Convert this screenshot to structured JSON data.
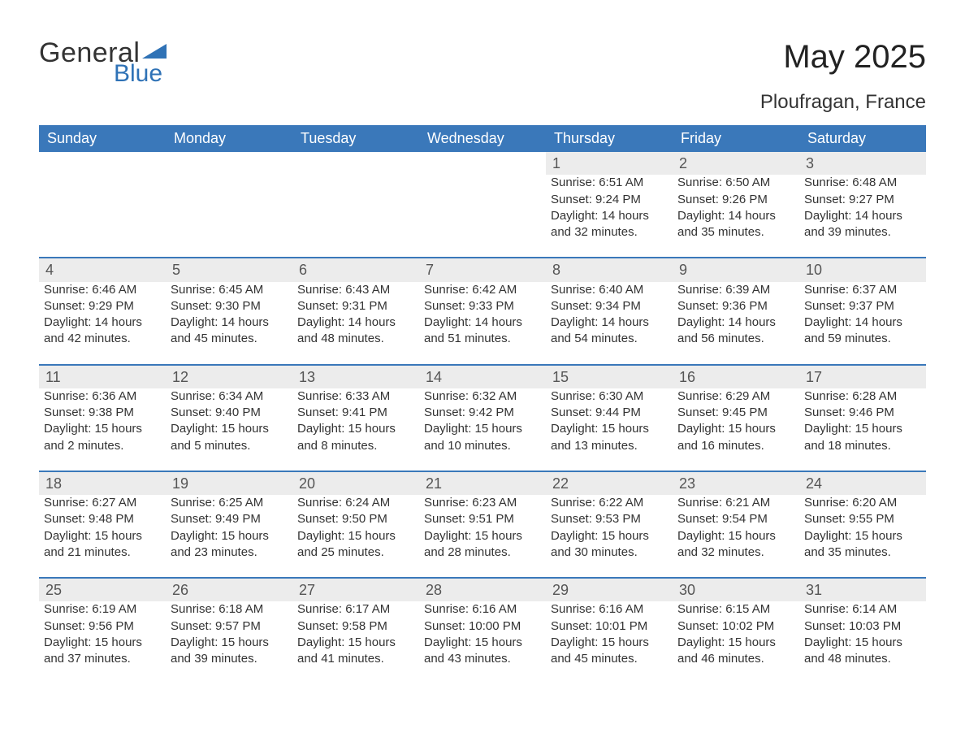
{
  "logo": {
    "text1": "General",
    "text2": "Blue",
    "triangle_color": "#2f72b6"
  },
  "title": "May 2025",
  "subtitle": "Ploufragan, France",
  "colors": {
    "header_bg": "#3a78ba",
    "header_text": "#ffffff",
    "daynum_bg": "#ececec",
    "daynum_border": "#3a78ba",
    "body_text": "#333333",
    "page_bg": "#ffffff"
  },
  "fonts": {
    "title_size_pt": 30,
    "subtitle_size_pt": 18,
    "header_size_pt": 14,
    "body_size_pt": 11
  },
  "columns": [
    "Sunday",
    "Monday",
    "Tuesday",
    "Wednesday",
    "Thursday",
    "Friday",
    "Saturday"
  ],
  "weeks": [
    [
      null,
      null,
      null,
      null,
      {
        "day": "1",
        "sunrise": "Sunrise: 6:51 AM",
        "sunset": "Sunset: 9:24 PM",
        "day1": "Daylight: 14 hours",
        "day2": "and 32 minutes."
      },
      {
        "day": "2",
        "sunrise": "Sunrise: 6:50 AM",
        "sunset": "Sunset: 9:26 PM",
        "day1": "Daylight: 14 hours",
        "day2": "and 35 minutes."
      },
      {
        "day": "3",
        "sunrise": "Sunrise: 6:48 AM",
        "sunset": "Sunset: 9:27 PM",
        "day1": "Daylight: 14 hours",
        "day2": "and 39 minutes."
      }
    ],
    [
      {
        "day": "4",
        "sunrise": "Sunrise: 6:46 AM",
        "sunset": "Sunset: 9:29 PM",
        "day1": "Daylight: 14 hours",
        "day2": "and 42 minutes."
      },
      {
        "day": "5",
        "sunrise": "Sunrise: 6:45 AM",
        "sunset": "Sunset: 9:30 PM",
        "day1": "Daylight: 14 hours",
        "day2": "and 45 minutes."
      },
      {
        "day": "6",
        "sunrise": "Sunrise: 6:43 AM",
        "sunset": "Sunset: 9:31 PM",
        "day1": "Daylight: 14 hours",
        "day2": "and 48 minutes."
      },
      {
        "day": "7",
        "sunrise": "Sunrise: 6:42 AM",
        "sunset": "Sunset: 9:33 PM",
        "day1": "Daylight: 14 hours",
        "day2": "and 51 minutes."
      },
      {
        "day": "8",
        "sunrise": "Sunrise: 6:40 AM",
        "sunset": "Sunset: 9:34 PM",
        "day1": "Daylight: 14 hours",
        "day2": "and 54 minutes."
      },
      {
        "day": "9",
        "sunrise": "Sunrise: 6:39 AM",
        "sunset": "Sunset: 9:36 PM",
        "day1": "Daylight: 14 hours",
        "day2": "and 56 minutes."
      },
      {
        "day": "10",
        "sunrise": "Sunrise: 6:37 AM",
        "sunset": "Sunset: 9:37 PM",
        "day1": "Daylight: 14 hours",
        "day2": "and 59 minutes."
      }
    ],
    [
      {
        "day": "11",
        "sunrise": "Sunrise: 6:36 AM",
        "sunset": "Sunset: 9:38 PM",
        "day1": "Daylight: 15 hours",
        "day2": "and 2 minutes."
      },
      {
        "day": "12",
        "sunrise": "Sunrise: 6:34 AM",
        "sunset": "Sunset: 9:40 PM",
        "day1": "Daylight: 15 hours",
        "day2": "and 5 minutes."
      },
      {
        "day": "13",
        "sunrise": "Sunrise: 6:33 AM",
        "sunset": "Sunset: 9:41 PM",
        "day1": "Daylight: 15 hours",
        "day2": "and 8 minutes."
      },
      {
        "day": "14",
        "sunrise": "Sunrise: 6:32 AM",
        "sunset": "Sunset: 9:42 PM",
        "day1": "Daylight: 15 hours",
        "day2": "and 10 minutes."
      },
      {
        "day": "15",
        "sunrise": "Sunrise: 6:30 AM",
        "sunset": "Sunset: 9:44 PM",
        "day1": "Daylight: 15 hours",
        "day2": "and 13 minutes."
      },
      {
        "day": "16",
        "sunrise": "Sunrise: 6:29 AM",
        "sunset": "Sunset: 9:45 PM",
        "day1": "Daylight: 15 hours",
        "day2": "and 16 minutes."
      },
      {
        "day": "17",
        "sunrise": "Sunrise: 6:28 AM",
        "sunset": "Sunset: 9:46 PM",
        "day1": "Daylight: 15 hours",
        "day2": "and 18 minutes."
      }
    ],
    [
      {
        "day": "18",
        "sunrise": "Sunrise: 6:27 AM",
        "sunset": "Sunset: 9:48 PM",
        "day1": "Daylight: 15 hours",
        "day2": "and 21 minutes."
      },
      {
        "day": "19",
        "sunrise": "Sunrise: 6:25 AM",
        "sunset": "Sunset: 9:49 PM",
        "day1": "Daylight: 15 hours",
        "day2": "and 23 minutes."
      },
      {
        "day": "20",
        "sunrise": "Sunrise: 6:24 AM",
        "sunset": "Sunset: 9:50 PM",
        "day1": "Daylight: 15 hours",
        "day2": "and 25 minutes."
      },
      {
        "day": "21",
        "sunrise": "Sunrise: 6:23 AM",
        "sunset": "Sunset: 9:51 PM",
        "day1": "Daylight: 15 hours",
        "day2": "and 28 minutes."
      },
      {
        "day": "22",
        "sunrise": "Sunrise: 6:22 AM",
        "sunset": "Sunset: 9:53 PM",
        "day1": "Daylight: 15 hours",
        "day2": "and 30 minutes."
      },
      {
        "day": "23",
        "sunrise": "Sunrise: 6:21 AM",
        "sunset": "Sunset: 9:54 PM",
        "day1": "Daylight: 15 hours",
        "day2": "and 32 minutes."
      },
      {
        "day": "24",
        "sunrise": "Sunrise: 6:20 AM",
        "sunset": "Sunset: 9:55 PM",
        "day1": "Daylight: 15 hours",
        "day2": "and 35 minutes."
      }
    ],
    [
      {
        "day": "25",
        "sunrise": "Sunrise: 6:19 AM",
        "sunset": "Sunset: 9:56 PM",
        "day1": "Daylight: 15 hours",
        "day2": "and 37 minutes."
      },
      {
        "day": "26",
        "sunrise": "Sunrise: 6:18 AM",
        "sunset": "Sunset: 9:57 PM",
        "day1": "Daylight: 15 hours",
        "day2": "and 39 minutes."
      },
      {
        "day": "27",
        "sunrise": "Sunrise: 6:17 AM",
        "sunset": "Sunset: 9:58 PM",
        "day1": "Daylight: 15 hours",
        "day2": "and 41 minutes."
      },
      {
        "day": "28",
        "sunrise": "Sunrise: 6:16 AM",
        "sunset": "Sunset: 10:00 PM",
        "day1": "Daylight: 15 hours",
        "day2": "and 43 minutes."
      },
      {
        "day": "29",
        "sunrise": "Sunrise: 6:16 AM",
        "sunset": "Sunset: 10:01 PM",
        "day1": "Daylight: 15 hours",
        "day2": "and 45 minutes."
      },
      {
        "day": "30",
        "sunrise": "Sunrise: 6:15 AM",
        "sunset": "Sunset: 10:02 PM",
        "day1": "Daylight: 15 hours",
        "day2": "and 46 minutes."
      },
      {
        "day": "31",
        "sunrise": "Sunrise: 6:14 AM",
        "sunset": "Sunset: 10:03 PM",
        "day1": "Daylight: 15 hours",
        "day2": "and 48 minutes."
      }
    ]
  ]
}
